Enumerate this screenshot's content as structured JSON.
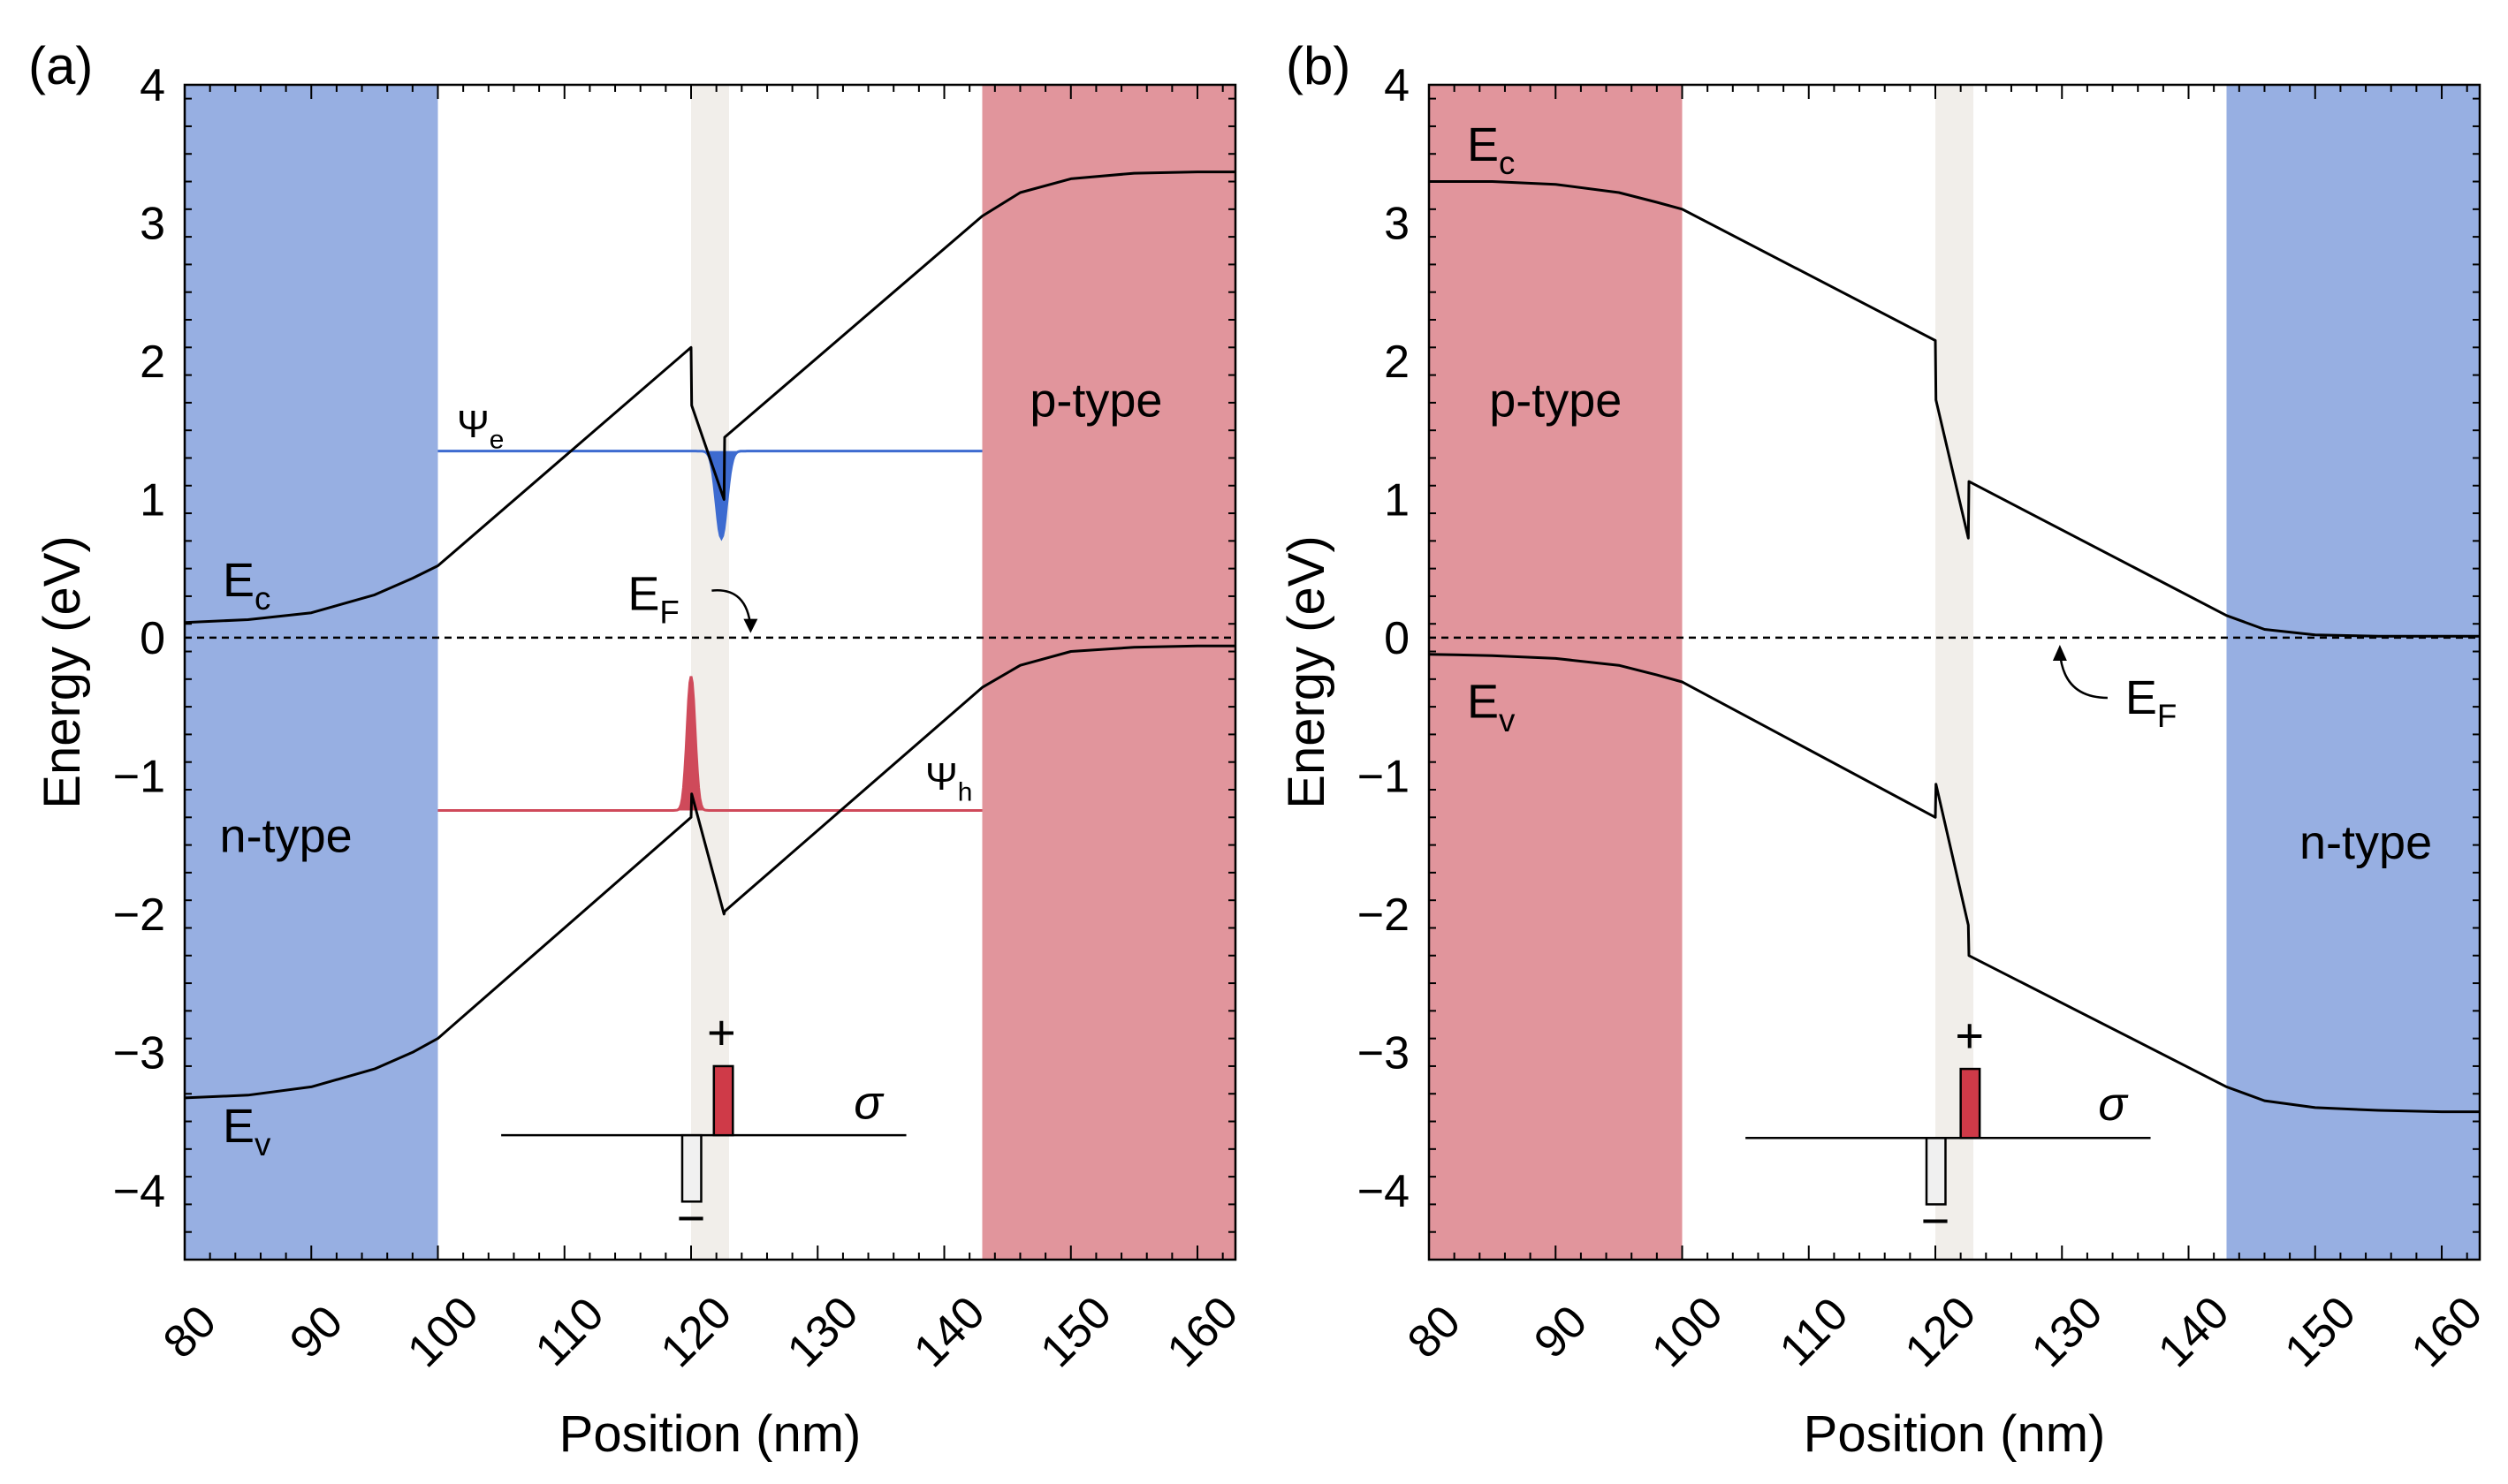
{
  "chart_data": [
    {
      "type": "line",
      "panel_label": "(a)",
      "xlabel": "Position (nm)",
      "ylabel": "Energy (eV)",
      "xlim": [
        80,
        163
      ],
      "ylim": [
        -4.5,
        4
      ],
      "xticks": [
        80,
        90,
        100,
        110,
        120,
        130,
        140,
        150,
        160
      ],
      "yticks": [
        4,
        3,
        2,
        1,
        0,
        -1,
        -2,
        -3,
        -4
      ],
      "regions": [
        {
          "name": "n-type",
          "range": [
            80,
            100
          ],
          "color": "#97afe2",
          "label": "n-type",
          "label_at": [
            88,
            -1.55
          ]
        },
        {
          "name": "interlayer",
          "range": [
            120,
            123
          ],
          "color": "#f1eeea"
        },
        {
          "name": "p-type",
          "range": [
            143,
            163
          ],
          "color": "#e1959c",
          "label": "p-type",
          "label_at": [
            152,
            1.6
          ]
        }
      ],
      "fermi_level": {
        "y": 0,
        "label": "E",
        "label_sub": "F",
        "label_at": [
          115,
          0.2
        ]
      },
      "series": [
        {
          "name": "E_c",
          "label": "E",
          "label_sub": "c",
          "label_at": [
            83,
            0.3
          ],
          "x": [
            80,
            85,
            90,
            95,
            98,
            100,
            120,
            120.05,
            122.6,
            122.65,
            143,
            146,
            150,
            155,
            160,
            163
          ],
          "y": [
            0.11,
            0.13,
            0.18,
            0.31,
            0.43,
            0.52,
            2.1,
            1.68,
            1.0,
            1.45,
            3.05,
            3.22,
            3.32,
            3.36,
            3.37,
            3.37
          ]
        },
        {
          "name": "E_v",
          "label": "E",
          "label_sub": "v",
          "label_at": [
            83,
            -3.65
          ],
          "x": [
            80,
            85,
            90,
            95,
            98,
            100,
            120,
            120.05,
            122.6,
            122.65,
            143,
            146,
            150,
            155,
            160,
            163
          ],
          "y": [
            -3.33,
            -3.31,
            -3.25,
            -3.12,
            -3.0,
            -2.9,
            -1.3,
            -1.13,
            -2.0,
            -1.98,
            -0.36,
            -0.2,
            -0.1,
            -0.07,
            -0.06,
            -0.06
          ]
        }
      ],
      "wavefunctions": [
        {
          "name": "psi_e",
          "label": "Ψ",
          "label_sub": "e",
          "color": "#3d6bd0",
          "baseline": 1.35,
          "range": [
            100,
            143
          ],
          "center": 122.4,
          "width": 0.6,
          "amplitude": -0.63,
          "label_at": [
            101.5,
            1.45
          ]
        },
        {
          "name": "psi_h",
          "label": "Ψ",
          "label_sub": "h",
          "color": "#cf4a5a",
          "baseline": -1.25,
          "range": [
            100,
            143
          ],
          "center": 120.0,
          "width": 0.45,
          "amplitude": 0.97,
          "label_at": [
            138.5,
            -1.1
          ]
        }
      ],
      "charge_inset": {
        "label": "σ",
        "plus": "+",
        "minus": "−",
        "axis_x": [
          105,
          137
        ],
        "axis_y": -3.6,
        "neg_x": [
          119.3,
          120.8
        ],
        "neg_y": [
          -3.6,
          -4.08
        ],
        "pos_x": [
          121.8,
          123.3
        ],
        "pos_y": [
          -3.6,
          -3.1
        ],
        "sigma_at": [
          134,
          -3.48
        ],
        "plus_at": [
          122.4,
          -2.98
        ],
        "minus_at": [
          120,
          -4.32
        ]
      }
    },
    {
      "type": "line",
      "panel_label": "(b)",
      "xlabel": "Position (nm)",
      "ylabel": "Energy (eV)",
      "xlim": [
        80,
        163
      ],
      "ylim": [
        -4.5,
        4
      ],
      "xticks": [
        80,
        90,
        100,
        110,
        120,
        130,
        140,
        150,
        160
      ],
      "yticks": [
        4,
        3,
        2,
        1,
        0,
        -1,
        -2,
        -3,
        -4
      ],
      "regions": [
        {
          "name": "p-type",
          "range": [
            80,
            100
          ],
          "color": "#e1959c",
          "label": "p-type",
          "label_at": [
            90,
            1.6
          ]
        },
        {
          "name": "interlayer",
          "range": [
            120,
            123
          ],
          "color": "#f1eeea"
        },
        {
          "name": "n-type",
          "range": [
            143,
            163
          ],
          "color": "#97afe2",
          "label": "n-type",
          "label_at": [
            154,
            -1.6
          ]
        }
      ],
      "fermi_level": {
        "y": 0,
        "label": "E",
        "label_sub": "F",
        "label_at": [
          135,
          -0.55
        ]
      },
      "series": [
        {
          "name": "E_c",
          "label": "E",
          "label_sub": "c",
          "label_at": [
            83,
            3.45
          ],
          "x": [
            80,
            85,
            90,
            95,
            98,
            100,
            120,
            120.05,
            122.6,
            122.65,
            143,
            146,
            150,
            155,
            160,
            163
          ],
          "y": [
            3.3,
            3.3,
            3.28,
            3.22,
            3.15,
            3.1,
            2.15,
            1.72,
            0.72,
            1.13,
            0.16,
            0.06,
            0.02,
            0.01,
            0.01,
            0.01
          ]
        },
        {
          "name": "E_v",
          "label": "E",
          "label_sub": "v",
          "label_at": [
            83,
            -0.58
          ],
          "x": [
            80,
            85,
            90,
            95,
            98,
            100,
            120,
            120.05,
            122.6,
            122.65,
            143,
            146,
            150,
            155,
            160,
            163
          ],
          "y": [
            -0.12,
            -0.13,
            -0.15,
            -0.2,
            -0.27,
            -0.32,
            -1.3,
            -1.06,
            -2.08,
            -2.3,
            -3.25,
            -3.35,
            -3.4,
            -3.42,
            -3.43,
            -3.43
          ]
        }
      ],
      "charge_inset": {
        "label": "σ",
        "plus": "+",
        "minus": "−",
        "axis_x": [
          105,
          137
        ],
        "axis_y": -3.62,
        "neg_x": [
          119.3,
          120.8
        ],
        "neg_y": [
          -3.62,
          -4.1
        ],
        "pos_x": [
          122.0,
          123.5
        ],
        "pos_y": [
          -3.62,
          -3.12
        ],
        "sigma_at": [
          134,
          -3.49
        ],
        "plus_at": [
          122.7,
          -3.0
        ],
        "minus_at": [
          120,
          -4.34
        ]
      }
    }
  ]
}
